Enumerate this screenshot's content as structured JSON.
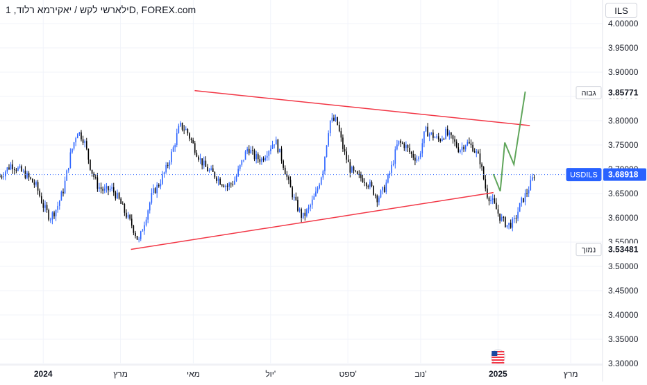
{
  "header": {
    "title": "ילארשי לקש / יאקירמא רלוד, 1D, FOREX.com",
    "currency_button": "ILS"
  },
  "colors": {
    "up_candle": "#2962ff",
    "down_candle": "#000000",
    "trendline": "#f23645",
    "projection": "#5fa55a",
    "current_price_label": "#2962ff"
  },
  "markers": {
    "high": {
      "label": "גבוה",
      "value": "3.85771"
    },
    "low": {
      "label": "נמוך",
      "value": "3.53481"
    },
    "current": {
      "label": "USDILS",
      "value": "3.68918"
    }
  },
  "icons": {
    "flag": "us-flag-icon"
  },
  "chart_data": {
    "type": "candlestick",
    "symbol": "USDILS",
    "interval": "1D",
    "ylim": [
      3.3,
      4.0
    ],
    "y_ticks": [
      "4.00000",
      "3.95000",
      "3.90000",
      "3.85000",
      "3.80000",
      "3.75000",
      "3.70000",
      "3.65000",
      "3.60000",
      "3.55000",
      "3.50000",
      "3.45000",
      "3.40000",
      "3.35000",
      "3.30000"
    ],
    "x_ticks": [
      {
        "label": "2024",
        "x": 2024.0
      },
      {
        "label": "מרץ",
        "x": 2024.17
      },
      {
        "label": "מאי",
        "x": 2024.33
      },
      {
        "label": "יול'",
        "x": 2024.5
      },
      {
        "label": "ספט'",
        "x": 2024.67
      },
      {
        "label": "נוב'",
        "x": 2024.83
      },
      {
        "label": "2025",
        "x": 2025.0
      },
      {
        "label": "מרץ",
        "x": 2025.16
      }
    ],
    "xlim": [
      2023.905,
      2025.23
    ],
    "current_price": 3.68918,
    "high": 3.85771,
    "low": 3.53481,
    "close_path": [
      [
        2023.905,
        3.685
      ],
      [
        2023.93,
        3.71
      ],
      [
        2023.96,
        3.69
      ],
      [
        2023.985,
        3.665
      ],
      [
        2024.0,
        3.625
      ],
      [
        2024.015,
        3.6
      ],
      [
        2024.03,
        3.62
      ],
      [
        2024.045,
        3.66
      ],
      [
        2024.06,
        3.73
      ],
      [
        2024.075,
        3.78
      ],
      [
        2024.09,
        3.76
      ],
      [
        2024.105,
        3.7
      ],
      [
        2024.12,
        3.665
      ],
      [
        2024.135,
        3.655
      ],
      [
        2024.15,
        3.66
      ],
      [
        2024.165,
        3.64
      ],
      [
        2024.18,
        3.61
      ],
      [
        2024.195,
        3.585
      ],
      [
        2024.21,
        3.55
      ],
      [
        2024.225,
        3.6
      ],
      [
        2024.24,
        3.65
      ],
      [
        2024.255,
        3.67
      ],
      [
        2024.27,
        3.7
      ],
      [
        2024.285,
        3.74
      ],
      [
        2024.3,
        3.79
      ],
      [
        2024.315,
        3.78
      ],
      [
        2024.33,
        3.75
      ],
      [
        2024.345,
        3.72
      ],
      [
        2024.36,
        3.7
      ],
      [
        2024.375,
        3.69
      ],
      [
        2024.39,
        3.675
      ],
      [
        2024.405,
        3.665
      ],
      [
        2024.42,
        3.675
      ],
      [
        2024.435,
        3.71
      ],
      [
        2024.45,
        3.745
      ],
      [
        2024.465,
        3.725
      ],
      [
        2024.48,
        3.72
      ],
      [
        2024.495,
        3.74
      ],
      [
        2024.51,
        3.76
      ],
      [
        2024.525,
        3.72
      ],
      [
        2024.54,
        3.67
      ],
      [
        2024.555,
        3.63
      ],
      [
        2024.57,
        3.6
      ],
      [
        2024.585,
        3.62
      ],
      [
        2024.6,
        3.65
      ],
      [
        2024.615,
        3.7
      ],
      [
        2024.63,
        3.8
      ],
      [
        2024.645,
        3.8
      ],
      [
        2024.66,
        3.74
      ],
      [
        2024.675,
        3.7
      ],
      [
        2024.69,
        3.685
      ],
      [
        2024.705,
        3.68
      ],
      [
        2024.72,
        3.665
      ],
      [
        2024.735,
        3.64
      ],
      [
        2024.75,
        3.66
      ],
      [
        2024.765,
        3.7
      ],
      [
        2024.78,
        3.755
      ],
      [
        2024.795,
        3.75
      ],
      [
        2024.81,
        3.73
      ],
      [
        2024.825,
        3.72
      ],
      [
        2024.84,
        3.78
      ],
      [
        2024.855,
        3.77
      ],
      [
        2024.87,
        3.76
      ],
      [
        2024.885,
        3.775
      ],
      [
        2024.9,
        3.76
      ],
      [
        2024.915,
        3.74
      ],
      [
        2024.93,
        3.755
      ],
      [
        2024.945,
        3.745
      ],
      [
        2024.96,
        3.72
      ],
      [
        2024.975,
        3.65
      ],
      [
        2024.99,
        3.63
      ],
      [
        2025.005,
        3.6
      ],
      [
        2025.02,
        3.585
      ],
      [
        2025.035,
        3.59
      ],
      [
        2025.05,
        3.63
      ],
      [
        2025.065,
        3.655
      ],
      [
        2025.08,
        3.689
      ]
    ],
    "trendlines": [
      {
        "name": "upper",
        "points": [
          [
            2024.333,
            3.862
          ],
          [
            2025.07,
            3.79
          ]
        ]
      },
      {
        "name": "lower",
        "points": [
          [
            2024.193,
            3.535
          ],
          [
            2024.99,
            3.652
          ]
        ]
      }
    ],
    "projection": [
      [
        2024.99,
        3.69
      ],
      [
        2025.005,
        3.655
      ],
      [
        2025.015,
        3.755
      ],
      [
        2025.035,
        3.71
      ],
      [
        2025.06,
        3.86
      ]
    ]
  }
}
